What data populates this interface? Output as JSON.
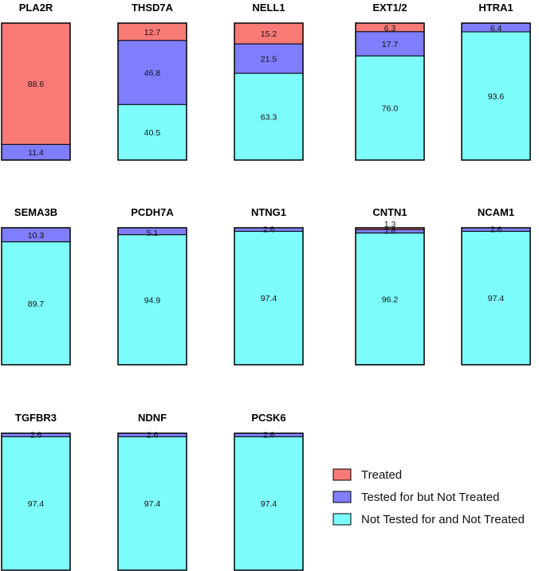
{
  "chart_data": {
    "type": "bar",
    "stacked": true,
    "ylim": [
      0,
      100
    ],
    "legend": {
      "placement": "bottom-right",
      "entries": [
        {
          "key": "treated",
          "label": "Treated",
          "color": "#f87a77"
        },
        {
          "key": "tested",
          "label": "Tested for but Not Treated",
          "color": "#7e7eff"
        },
        {
          "key": "not_tested",
          "label": "Not Tested for and Not Treated",
          "color": "#7dfcfc"
        }
      ]
    },
    "panels": [
      {
        "title": "PLA2R",
        "treated": 88.6,
        "tested": 11.4,
        "not_tested": 0
      },
      {
        "title": "THSD7A",
        "treated": 12.7,
        "tested": 46.8,
        "not_tested": 40.5
      },
      {
        "title": "NELL1",
        "treated": 15.2,
        "tested": 21.5,
        "not_tested": 63.3
      },
      {
        "title": "EXT1/2",
        "treated": 6.3,
        "tested": 17.7,
        "not_tested": 76.0
      },
      {
        "title": "HTRA1",
        "treated": 0,
        "tested": 6.4,
        "not_tested": 93.6
      },
      {
        "title": "SEMA3B",
        "treated": 0,
        "tested": 10.3,
        "not_tested": 89.7
      },
      {
        "title": "PCDH7A",
        "treated": 0,
        "tested": 5.1,
        "not_tested": 94.9
      },
      {
        "title": "NTNG1",
        "treated": 0,
        "tested": 2.6,
        "not_tested": 97.4
      },
      {
        "title": "CNTN1",
        "treated": 1.3,
        "tested": 2.6,
        "not_tested": 96.2
      },
      {
        "title": "NCAM1",
        "treated": 0,
        "tested": 2.6,
        "not_tested": 97.4
      },
      {
        "title": "TGFBR3",
        "treated": 0,
        "tested": 2.6,
        "not_tested": 97.4
      },
      {
        "title": "NDNF",
        "treated": 0,
        "tested": 2.6,
        "not_tested": 97.4
      },
      {
        "title": "PCSK6",
        "treated": 0,
        "tested": 2.6,
        "not_tested": 97.4
      }
    ]
  }
}
